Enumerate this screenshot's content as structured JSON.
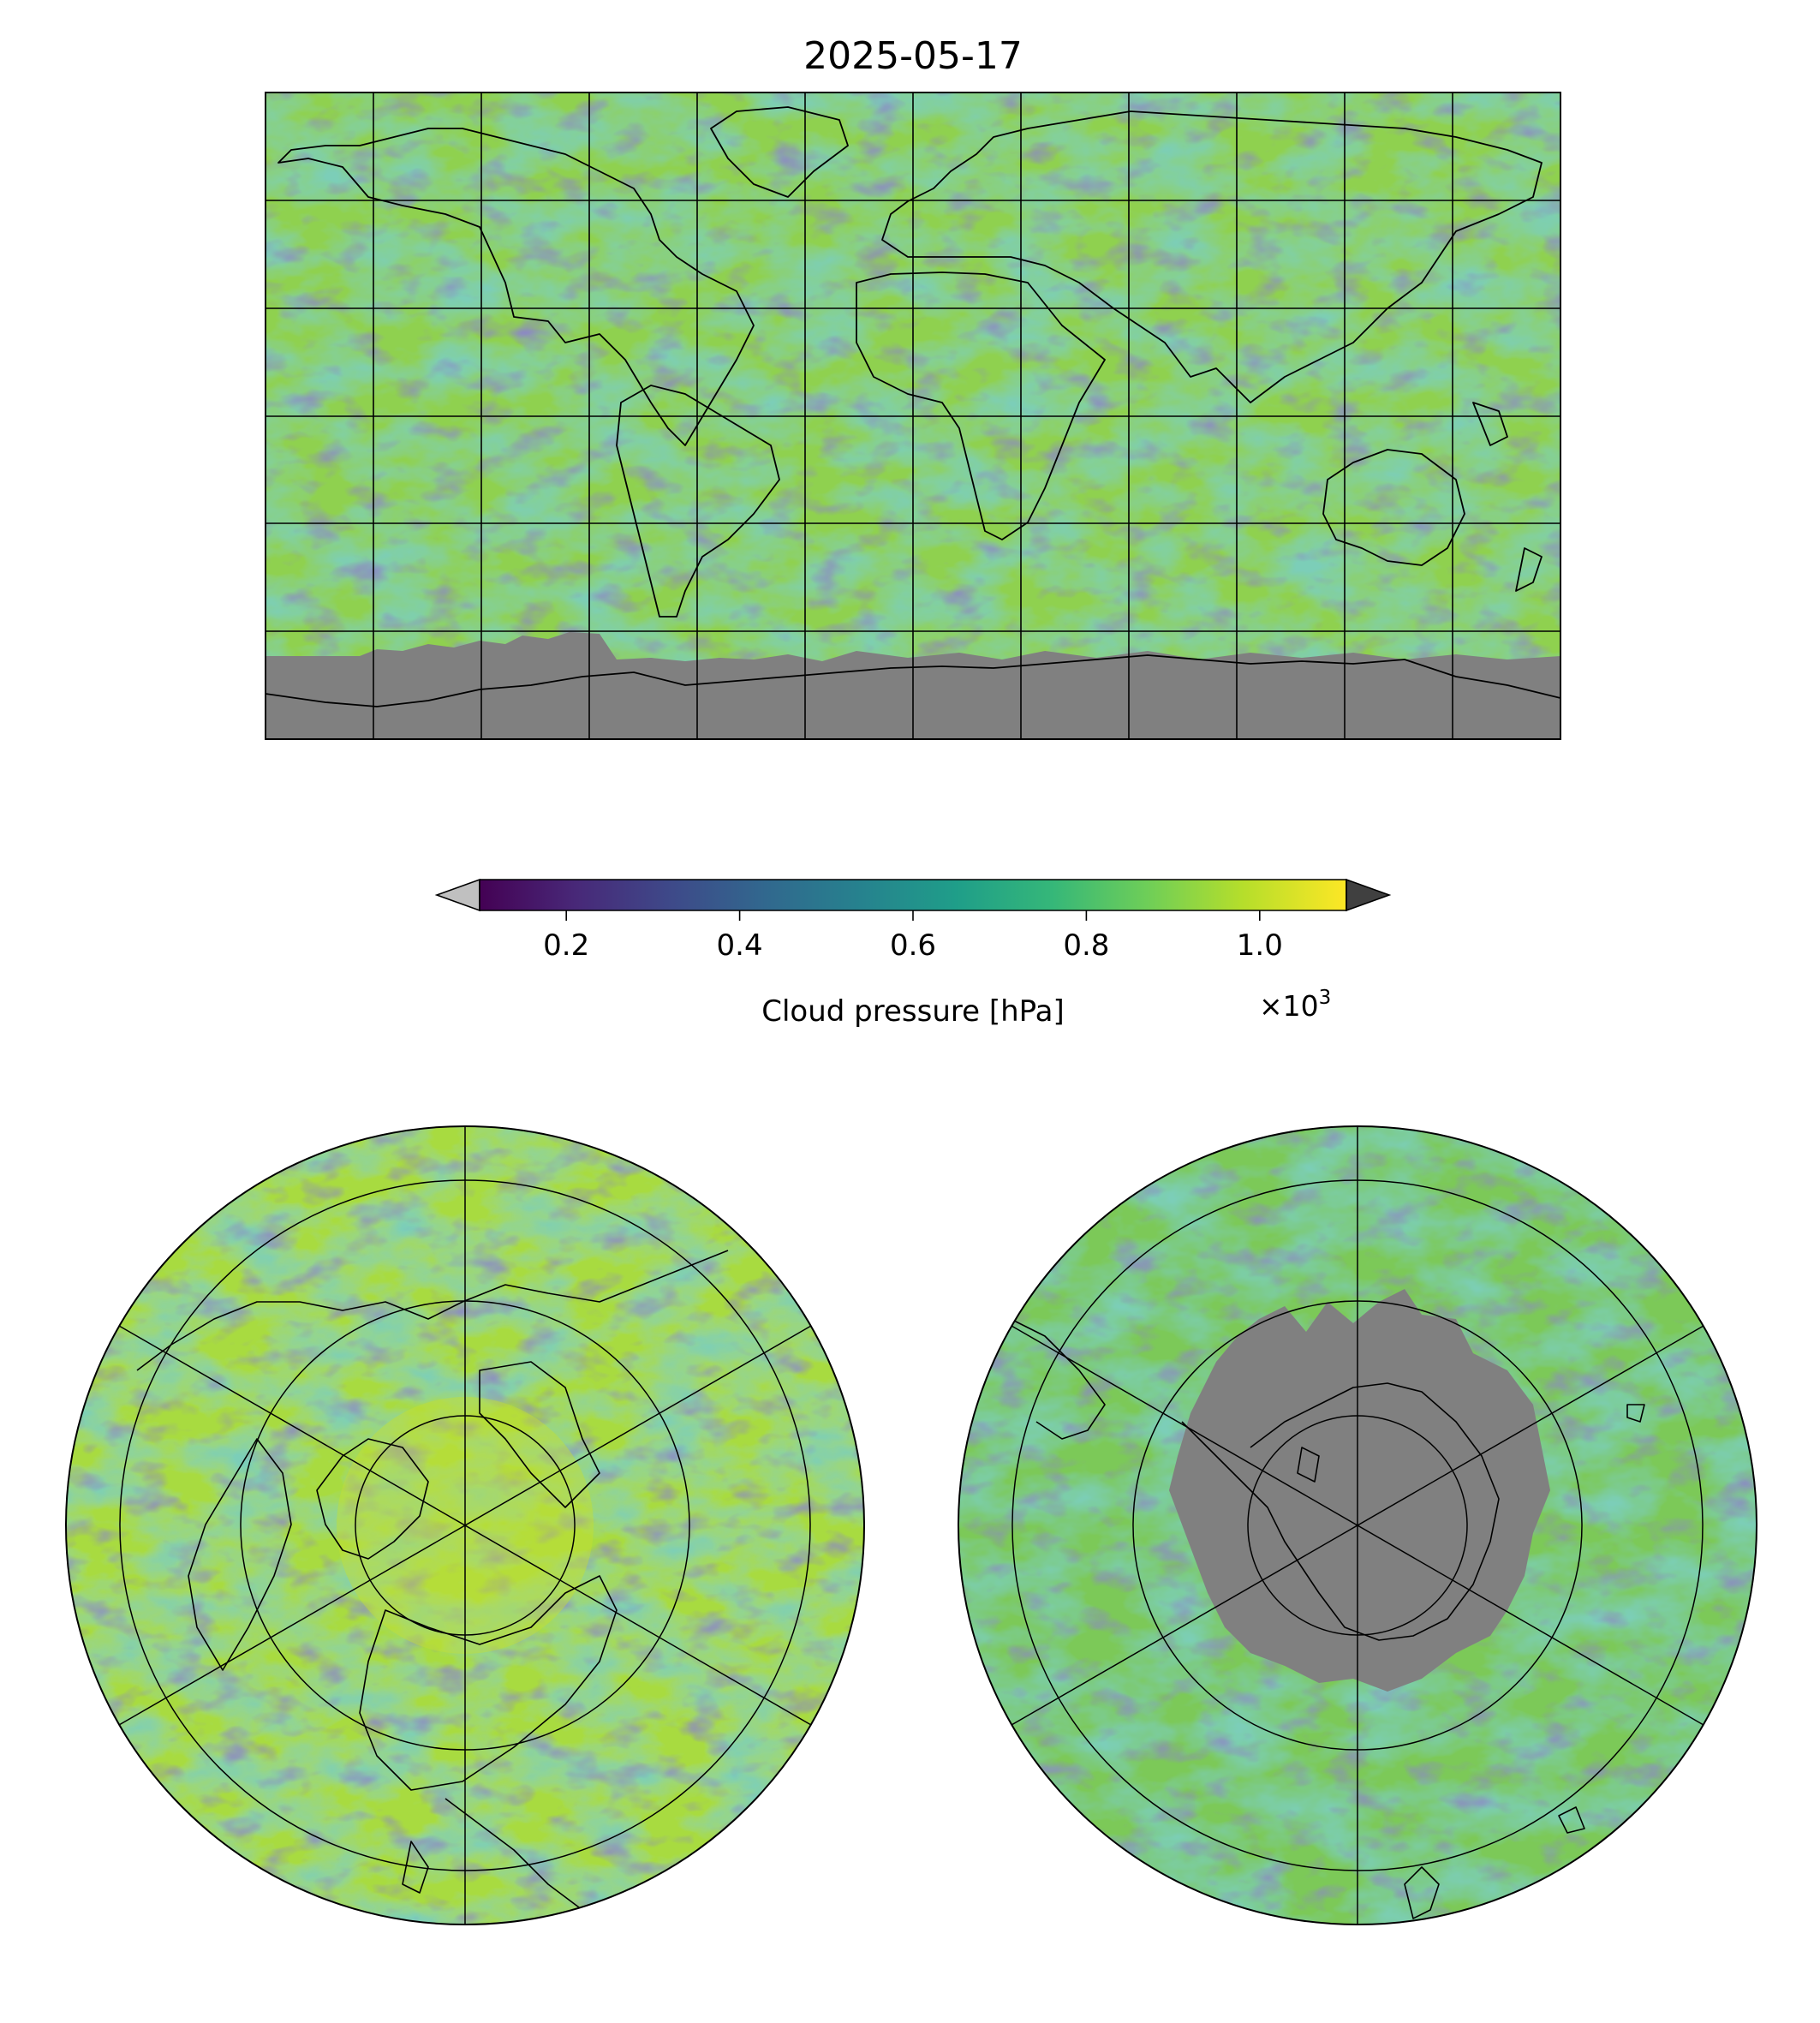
{
  "figure": {
    "title": "2025-05-17"
  },
  "colorbar": {
    "label": "Cloud pressure [hPa]",
    "ticks": [
      "0.2",
      "0.4",
      "0.6",
      "0.8",
      "1.0"
    ],
    "tick_values": [
      0.2,
      0.4,
      0.6,
      0.8,
      1.0
    ],
    "range": [
      0.1,
      1.1
    ],
    "multiplier": "×10",
    "multiplier_exp": "3",
    "colormap": [
      "#440154",
      "#482878",
      "#3e4989",
      "#31688e",
      "#26828e",
      "#1f9e89",
      "#35b779",
      "#6ece58",
      "#b5de2b",
      "#fde725"
    ],
    "under_color": "#c0c0c0",
    "over_color": "#404040"
  },
  "colors": {
    "no_data": "#808080",
    "coastline": "#000000",
    "gridline": "#000000"
  },
  "panels": [
    {
      "id": "global",
      "projection": "plate-carree",
      "lon_grid_step": 30,
      "lat_grid_step": 30
    },
    {
      "id": "north-polar",
      "projection": "north-polar-stereographic",
      "meridian_step": 60,
      "parallels": [
        30,
        50,
        70
      ]
    },
    {
      "id": "south-polar",
      "projection": "south-polar-stereographic",
      "meridian_step": 60,
      "parallels": [
        -30,
        -50,
        -70
      ]
    }
  ]
}
